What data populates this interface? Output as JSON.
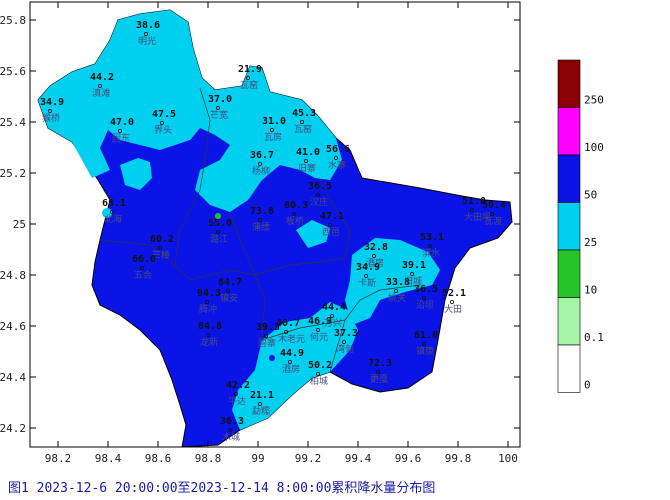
{
  "caption": "图1 2023-12-6 20:00:00至2023-12-14 8:00:00累积降水量分布图",
  "x_ticks": [
    "98.2",
    "98.4",
    "98.6",
    "98.8",
    "99",
    "99.2",
    "99.4",
    "99.6",
    "99.8",
    "100"
  ],
  "y_ticks": [
    "25.8",
    "25.6",
    "25.4",
    "25.2",
    "25",
    "24.8",
    "24.6",
    "24.4",
    "24.2"
  ],
  "legend": {
    "labels": [
      "250",
      "100",
      "50",
      "25",
      "10",
      "0.1",
      "0"
    ],
    "colors": [
      "#8b0000",
      "#ff00ff",
      "#0a14e6",
      "#00d0f0",
      "#26c426",
      "#a6f5a6",
      "#ffffff"
    ]
  },
  "stations": [
    {
      "value": "38.6",
      "name": "明光"
    },
    {
      "value": "44.2",
      "name": "滇滩"
    },
    {
      "value": "34.9",
      "name": "猴桥"
    },
    {
      "value": "21.9",
      "name": "瓦窑"
    },
    {
      "value": "37.0",
      "name": "芒宽"
    },
    {
      "value": "31.0",
      "name": "瓦房"
    },
    {
      "value": "45.3",
      "name": "瓦窑"
    },
    {
      "value": "47.0",
      "name": "固东"
    },
    {
      "value": "47.5",
      "name": "界头"
    },
    {
      "value": "36.7",
      "name": "杨柳"
    },
    {
      "value": "41.0",
      "name": "旧寨"
    },
    {
      "value": "56.6",
      "name": "水寨"
    },
    {
      "value": "55.0",
      "name": "潞江"
    },
    {
      "value": "73.8",
      "name": "蒲缥"
    },
    {
      "value": "80.3",
      "name": "板桥"
    },
    {
      "value": "36.5",
      "name": "汉庄"
    },
    {
      "value": "47.1",
      "name": "西邑"
    },
    {
      "value": "51.0",
      "name": "大田坝"
    },
    {
      "value": "50.4",
      "name": "瓦渡"
    },
    {
      "value": "68.1",
      "name": "北海"
    },
    {
      "value": "60.2",
      "name": "芒棒"
    },
    {
      "value": "32.8",
      "name": "酒房"
    },
    {
      "value": "53.1",
      "name": "漭水"
    },
    {
      "value": "34.9",
      "name": "卡斯"
    },
    {
      "value": "39.1",
      "name": "旧城"
    },
    {
      "value": "33.8",
      "name": "姚关"
    },
    {
      "value": "36.5",
      "name": "沿坝"
    },
    {
      "value": "52.1",
      "name": "大田"
    },
    {
      "value": "66.0",
      "name": "五合"
    },
    {
      "value": "94.3",
      "name": "腾冲"
    },
    {
      "value": "84.7",
      "name": "镇安"
    },
    {
      "value": "84.8",
      "name": "龙新"
    },
    {
      "value": "39.3",
      "name": "碧寨"
    },
    {
      "value": "40.7",
      "name": "木老元"
    },
    {
      "value": "46.9",
      "name": "何元"
    },
    {
      "value": "44.4",
      "name": "万兴"
    },
    {
      "value": "37.3",
      "name": "湾甸"
    },
    {
      "value": "44.9",
      "name": "酒房"
    },
    {
      "value": "50.2",
      "name": "柏城"
    },
    {
      "value": "72.3",
      "name": "更戛"
    },
    {
      "value": "61.0",
      "name": "镇康"
    },
    {
      "value": "42.2",
      "name": "平达"
    },
    {
      "value": "21.1",
      "name": "勐糯"
    },
    {
      "value": "36.3",
      "name": "木城"
    }
  ],
  "place_names": [
    "明光",
    "滇滩",
    "猴桥",
    "瓦窑",
    "芒宽",
    "瓦房",
    "界头",
    "固东",
    "曲石",
    "马站",
    "杨柳",
    "旧寨",
    "水寨",
    "潞江",
    "蒲缥",
    "板桥",
    "汉庄",
    "西邑",
    "保场",
    "大田坝",
    "瓦渡",
    "北海",
    "腾越",
    "和顺",
    "清水",
    "芒棒",
    "五合",
    "新华",
    "荷花",
    "团田",
    "蒲川",
    "龙江",
    "龙新",
    "勐糯",
    "平达",
    "木城",
    "碧寨",
    "镇安",
    "腊勐",
    "太平",
    "由旺",
    "何元",
    "万兴",
    "湾甸",
    "柏城",
    "酒房",
    "姚关",
    "旧城",
    "卡斯",
    "漭水",
    "沿坝",
    "更戛",
    "勐简",
    "大田"
  ]
}
